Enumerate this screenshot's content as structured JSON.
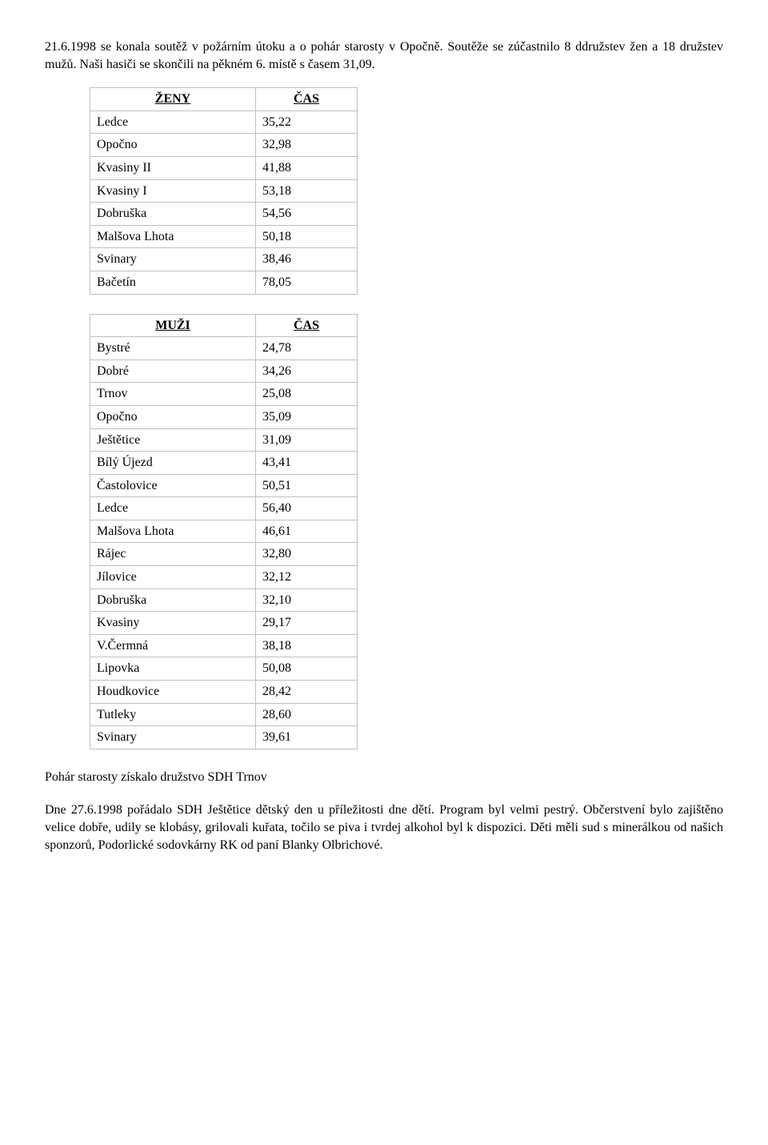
{
  "intro_text": "21.6.1998 se konala soutěž v požárním útoku a o pohár starosty v Opočně. Soutěže se zúčastnilo 8 ddružstev žen a 18 družstev mužů. Naši hasiči se skončili na pěkném 6. místě s časem 31,09.",
  "table_women": {
    "header_left": "ŽENY",
    "header_right": "ČAS",
    "col_name_width": 190,
    "col_val_width": 110,
    "border_color": "#bfbfbf",
    "rows": [
      {
        "name": "Ledce",
        "value": "35,22"
      },
      {
        "name": "Opočno",
        "value": "32,98"
      },
      {
        "name": "Kvasiny II",
        "value": "41,88"
      },
      {
        "name": "Kvasiny I",
        "value": "53,18"
      },
      {
        "name": "Dobruška",
        "value": "54,56"
      },
      {
        "name": "Malšova Lhota",
        "value": "50,18"
      },
      {
        "name": "Svinary",
        "value": "38,46"
      },
      {
        "name": "Bačetín",
        "value": "78,05"
      }
    ]
  },
  "table_men": {
    "header_left": "MUŽI",
    "header_right": "ČAS",
    "col_name_width": 190,
    "col_val_width": 110,
    "border_color": "#bfbfbf",
    "rows": [
      {
        "name": "Bystré",
        "value": "24,78"
      },
      {
        "name": "Dobré",
        "value": "34,26"
      },
      {
        "name": "Trnov",
        "value": "25,08"
      },
      {
        "name": "Opočno",
        "value": "35,09"
      },
      {
        "name": "Ještětice",
        "value": "31,09"
      },
      {
        "name": "Bílý Újezd",
        "value": "43,41"
      },
      {
        "name": "Častolovice",
        "value": "50,51"
      },
      {
        "name": "Ledce",
        "value": "56,40"
      },
      {
        "name": "Malšova Lhota",
        "value": "46,61"
      },
      {
        "name": "Rájec",
        "value": "32,80"
      },
      {
        "name": "Jílovice",
        "value": "32,12"
      },
      {
        "name": "Dobruška",
        "value": "32,10"
      },
      {
        "name": "Kvasiny",
        "value": "29,17"
      },
      {
        "name": "V.Čermná",
        "value": "38,18"
      },
      {
        "name": "Lipovka",
        "value": "50,08"
      },
      {
        "name": "Houdkovice",
        "value": "28,42"
      },
      {
        "name": "Tutleky",
        "value": "28,60"
      },
      {
        "name": "Svinary",
        "value": "39,61"
      }
    ]
  },
  "result_text": "Pohár starosty získalo družstvo SDH Trnov",
  "closing_text": "Dne 27.6.1998 pořádalo SDH Ještětice dětský den u příležitosti dne dětí. Program byl velmi pestrý. Občerstvení bylo zajištěno velice dobře, udily se klobásy, grilovali kuřata, točilo se piva i tvrdej alkohol byl k dispozici. Děti měli sud s minerálkou od našich sponzorů, Podorlické sodovkárny RK od paní Blanky Olbrichové."
}
